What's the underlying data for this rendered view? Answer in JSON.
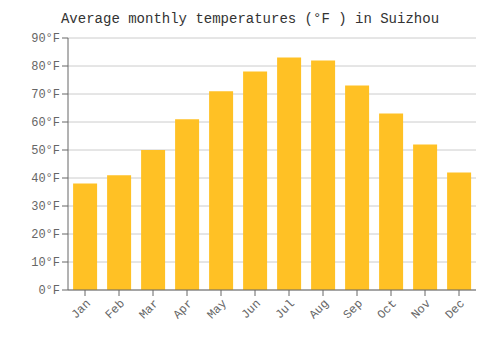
{
  "chart_data": {
    "type": "bar",
    "title": "Average monthly temperatures (°F ) in Suizhou",
    "categories": [
      "Jan",
      "Feb",
      "Mar",
      "Apr",
      "May",
      "Jun",
      "Jul",
      "Aug",
      "Sep",
      "Oct",
      "Nov",
      "Dec"
    ],
    "values": [
      38,
      41,
      50,
      61,
      71,
      78,
      83,
      82,
      73,
      63,
      52,
      42
    ],
    "color": "#FFC125",
    "ylim": [
      0,
      90
    ],
    "yticks": [
      {
        "value": 0,
        "label": "0°F"
      },
      {
        "value": 10,
        "label": "10°F"
      },
      {
        "value": 20,
        "label": "20°F"
      },
      {
        "value": 30,
        "label": "30°F"
      },
      {
        "value": 40,
        "label": "40°F"
      },
      {
        "value": 50,
        "label": "50°F"
      },
      {
        "value": 60,
        "label": "60°F"
      },
      {
        "value": 70,
        "label": "70°F"
      },
      {
        "value": 80,
        "label": "80°F"
      },
      {
        "value": 90,
        "label": "90°F"
      }
    ],
    "grid": true
  }
}
